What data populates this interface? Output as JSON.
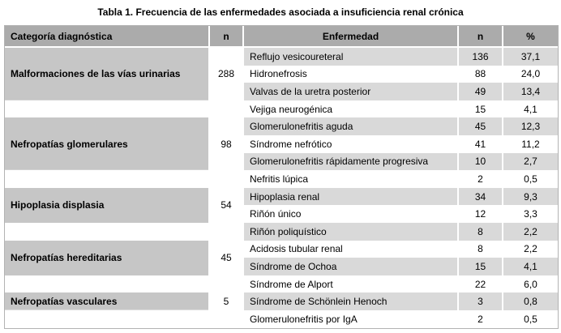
{
  "title": "Tabla 1. Frecuencia de las enfermedades asociada a insuficiencia renal crónica",
  "chart_data": {
    "type": "table",
    "title": "Tabla 1. Frecuencia de las enfermedades asociada a insuficiencia renal crónica",
    "columns": [
      "Categoría diagnóstica",
      "n",
      "Enfermedad",
      "n",
      "%"
    ],
    "rows": [
      [
        "Malformaciones de las vías urinarias",
        288,
        "Reflujo vesicoureteral",
        136,
        37.1
      ],
      [
        "",
        null,
        "Hidronefrosis",
        88,
        24.0
      ],
      [
        "",
        null,
        "Valvas de la uretra posterior",
        49,
        13.4
      ],
      [
        "",
        null,
        "Vejiga neurogénica",
        15,
        4.1
      ],
      [
        "Nefropatías glomerulares",
        98,
        "Glomerulonefritis aguda",
        45,
        12.3
      ],
      [
        "",
        null,
        "Síndrome nefrótico",
        41,
        11.2
      ],
      [
        "",
        null,
        "Glomerulonefritis rápidamente progresiva",
        10,
        2.7
      ],
      [
        "",
        null,
        "Nefritis lúpica",
        2,
        0.5
      ],
      [
        "Hipoplasia displasia",
        54,
        "Hipoplasia renal",
        34,
        9.3
      ],
      [
        "",
        null,
        "Riñón único",
        12,
        3.3
      ],
      [
        "",
        null,
        "Riñón poliquístico",
        8,
        2.2
      ],
      [
        "Nefropatías hereditarias",
        45,
        "Acidosis tubular renal",
        8,
        2.2
      ],
      [
        "",
        null,
        "Síndrome de Ochoa",
        15,
        4.1
      ],
      [
        "",
        null,
        "Síndrome de Alport",
        22,
        6.0
      ],
      [
        "Nefropatías vasculares",
        5,
        "Síndrome de Schönlein Henoch",
        3,
        0.8
      ],
      [
        "",
        null,
        "Glomerulonefritis por IgA",
        2,
        0.5
      ]
    ]
  },
  "table": {
    "headers": {
      "category": "Categoría diagnóstica",
      "category_n": "n",
      "disease": "Enfermedad",
      "disease_n": "n",
      "percent": "%"
    },
    "groups": [
      {
        "category": "Malformaciones de las vías urinarias",
        "n": "288",
        "diseases": [
          {
            "name": "Reflujo vesicoureteral",
            "n": "136",
            "pct": "37,1"
          },
          {
            "name": "Hidronefrosis",
            "n": "88",
            "pct": "24,0"
          },
          {
            "name": "Valvas de la uretra posterior",
            "n": "49",
            "pct": "13,4"
          },
          {
            "name": "Vejiga neurogénica",
            "n": "15",
            "pct": "4,1"
          }
        ]
      },
      {
        "category": "Nefropatías glomerulares",
        "n": "98",
        "diseases": [
          {
            "name": "Glomerulonefritis aguda",
            "n": "45",
            "pct": "12,3"
          },
          {
            "name": "Síndrome nefrótico",
            "n": "41",
            "pct": "11,2"
          },
          {
            "name": "Glomerulonefritis rápidamente progresiva",
            "n": "10",
            "pct": "2,7"
          },
          {
            "name": "Nefritis lúpica",
            "n": "2",
            "pct": "0,5"
          }
        ]
      },
      {
        "category": "Hipoplasia displasia",
        "n": "54",
        "diseases": [
          {
            "name": "Hipoplasia renal",
            "n": "34",
            "pct": "9,3"
          },
          {
            "name": "Riñón único",
            "n": "12",
            "pct": "3,3"
          },
          {
            "name": "Riñón poliquístico",
            "n": "8",
            "pct": "2,2"
          }
        ]
      },
      {
        "category": "Nefropatías hereditarias",
        "n": "45",
        "diseases": [
          {
            "name": "Acidosis tubular renal",
            "n": "8",
            "pct": "2,2"
          },
          {
            "name": "Síndrome de Ochoa",
            "n": "15",
            "pct": "4,1"
          },
          {
            "name": "Síndrome de Alport",
            "n": "22",
            "pct": "6,0"
          }
        ]
      },
      {
        "category": "Nefropatías vasculares",
        "n": "5",
        "diseases": [
          {
            "name": "Síndrome de Schönlein Henoch",
            "n": "3",
            "pct": "0,8"
          },
          {
            "name": "Glomerulonefritis por IgA",
            "n": "2",
            "pct": "0,5"
          }
        ]
      }
    ],
    "colors": {
      "header_bg": "#ababab",
      "category_bg": "#c6c6c6",
      "zebra_bg": "#d9d9d9"
    }
  }
}
